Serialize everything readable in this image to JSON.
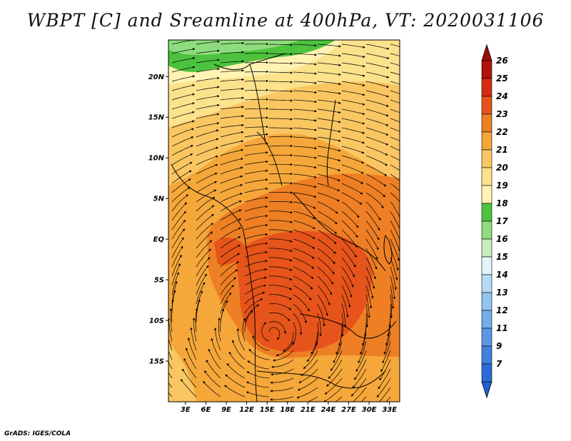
{
  "title": "WBPT [C] and Sreamline at 400hPa, VT: 2020031106",
  "credit": "GrADS: IGES/COLA",
  "lat_labels": [
    "20N",
    "15N",
    "10N",
    "5N",
    "EQ",
    "5S",
    "10S",
    "15S"
  ],
  "lat_values": [
    20,
    15,
    10,
    5,
    0,
    -5,
    -10,
    -15
  ],
  "lon_labels": [
    "3E",
    "6E",
    "9E",
    "12E",
    "15E",
    "18E",
    "21E",
    "24E",
    "27E",
    "30E",
    "33E"
  ],
  "lon_values": [
    3,
    6,
    9,
    12,
    15,
    18,
    21,
    24,
    27,
    30,
    33
  ],
  "map_extent": {
    "lon": [
      0.5,
      34.5
    ],
    "lat": [
      -20,
      24.5
    ]
  },
  "colorbar": {
    "labels": [
      "7",
      "9",
      "11",
      "12",
      "13",
      "14",
      "15",
      "16",
      "17",
      "18",
      "19",
      "20",
      "21",
      "22",
      "23",
      "24",
      "25",
      "26"
    ],
    "colors": [
      "#2a6bd6",
      "#3f80e0",
      "#5996e6",
      "#74aded",
      "#92c4f2",
      "#b5dcf7",
      "#e3f5fb",
      "#c6ecbe",
      "#8fdc7e",
      "#4cc23e",
      "#fff2b2",
      "#fde28c",
      "#f9c662",
      "#f5a73a",
      "#ee7f24",
      "#e6541b",
      "#d42d12",
      "#b21209"
    ],
    "under_color": "#1f5fd0",
    "over_color": "#9c0c08"
  }
}
